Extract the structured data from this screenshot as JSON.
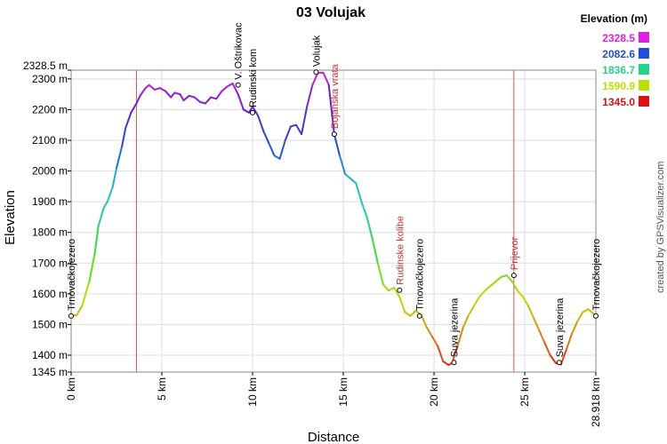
{
  "chart_data": {
    "type": "line",
    "title": "03 Volujak",
    "xlabel": "Distance",
    "ylabel": "Elevation",
    "x_unit": "km",
    "y_unit": "m",
    "xlim": [
      0,
      28.918
    ],
    "ylim": [
      1345,
      2328.5
    ],
    "x_ticks": [
      {
        "value": 0,
        "label": "0 km"
      },
      {
        "value": 5,
        "label": "5 km"
      },
      {
        "value": 10,
        "label": "10 km"
      },
      {
        "value": 15,
        "label": "15 km"
      },
      {
        "value": 20,
        "label": "20 km"
      },
      {
        "value": 25,
        "label": "25 km"
      },
      {
        "value": 28.918,
        "label": "28.918 km"
      }
    ],
    "y_ticks": [
      {
        "value": 1345,
        "label": "1345 m"
      },
      {
        "value": 1400,
        "label": "1400 m"
      },
      {
        "value": 1500,
        "label": "1500 m"
      },
      {
        "value": 1600,
        "label": "1600 m"
      },
      {
        "value": 1700,
        "label": "1700 m"
      },
      {
        "value": 1800,
        "label": "1800 m"
      },
      {
        "value": 1900,
        "label": "1900 m"
      },
      {
        "value": 2000,
        "label": "2000 m"
      },
      {
        "value": 2100,
        "label": "2100 m"
      },
      {
        "value": 2200,
        "label": "2200 m"
      },
      {
        "value": 2300,
        "label": "2300 m"
      },
      {
        "value": 2328.5,
        "label": "2328.5 m"
      }
    ],
    "grid": true,
    "vertical_markers": [
      3.6,
      24.4
    ],
    "series": [
      {
        "x": [
          0,
          0.3,
          0.6,
          1.0,
          1.3,
          1.5,
          1.8,
          2.0,
          2.3,
          2.5,
          2.8,
          3.0,
          3.3,
          3.6,
          3.8,
          4.1,
          4.3,
          4.6,
          4.9,
          5.2,
          5.5,
          5.7,
          6.0,
          6.2,
          6.5,
          6.8,
          7.1,
          7.4,
          7.7,
          8.0,
          8.3,
          8.6,
          8.9,
          9.2,
          9.5,
          9.8,
          10.0,
          10.3,
          10.6,
          10.9,
          11.2,
          11.5,
          11.8,
          12.1,
          12.4,
          12.7,
          13.0,
          13.3,
          13.6,
          13.9,
          14.2,
          14.5,
          14.8,
          15.1,
          15.4,
          15.7,
          16.0,
          16.3,
          16.6,
          16.9,
          17.2,
          17.5,
          17.8,
          18.1,
          18.4,
          18.7,
          19.0,
          19.3,
          19.6,
          19.9,
          20.2,
          20.5,
          20.8,
          21.0,
          21.3,
          21.6,
          21.9,
          22.2,
          22.5,
          22.8,
          23.1,
          23.4,
          23.7,
          24.0,
          24.3,
          24.6,
          24.9,
          25.2,
          25.5,
          25.8,
          26.1,
          26.4,
          26.7,
          27.0,
          27.3,
          27.6,
          27.9,
          28.2,
          28.5,
          28.918
        ],
        "y": [
          1528,
          1530,
          1560,
          1640,
          1730,
          1820,
          1880,
          1900,
          1950,
          2010,
          2080,
          2140,
          2190,
          2220,
          2245,
          2270,
          2280,
          2265,
          2270,
          2260,
          2240,
          2255,
          2250,
          2230,
          2245,
          2240,
          2225,
          2220,
          2240,
          2235,
          2260,
          2275,
          2285,
          2250,
          2200,
          2190,
          2210,
          2180,
          2130,
          2090,
          2050,
          2040,
          2100,
          2145,
          2150,
          2120,
          2210,
          2280,
          2320,
          2320,
          2280,
          2120,
          2050,
          1990,
          1975,
          1960,
          1900,
          1850,
          1780,
          1700,
          1630,
          1610,
          1620,
          1590,
          1540,
          1528,
          1545,
          1530,
          1490,
          1460,
          1430,
          1380,
          1368,
          1375,
          1430,
          1490,
          1530,
          1560,
          1590,
          1610,
          1625,
          1640,
          1655,
          1660,
          1640,
          1610,
          1590,
          1560,
          1520,
          1480,
          1440,
          1400,
          1375,
          1370,
          1420,
          1470,
          1510,
          1540,
          1550,
          1528
        ]
      }
    ],
    "waypoints": [
      {
        "x": 0,
        "y": 1528,
        "label": "Trnovačkojezero",
        "color": "#000000"
      },
      {
        "x": 9.2,
        "y": 2280,
        "label": "V. Oštrikovac",
        "color": "#000000"
      },
      {
        "x": 10.0,
        "y": 2190,
        "label": "Rudinski kom",
        "color": "#000000"
      },
      {
        "x": 13.5,
        "y": 2322,
        "label": "Volujak",
        "color": "#000000"
      },
      {
        "x": 14.5,
        "y": 2120,
        "label": "Bojanska vrata",
        "color": "#cc3333"
      },
      {
        "x": 18.1,
        "y": 1612,
        "label": "Rudinske kolibe",
        "color": "#cc3333"
      },
      {
        "x": 19.2,
        "y": 1528,
        "label": "Trnovačkojezero",
        "color": "#000000"
      },
      {
        "x": 21.1,
        "y": 1376,
        "label": "Suva jezerina",
        "color": "#000000"
      },
      {
        "x": 24.4,
        "y": 1660,
        "label": "Prijevor",
        "color": "#cc3333"
      },
      {
        "x": 26.9,
        "y": 1376,
        "label": "Suva jezerina",
        "color": "#000000"
      },
      {
        "x": 28.918,
        "y": 1528,
        "label": "Trnovačkojezero",
        "color": "#000000"
      }
    ],
    "legend": {
      "title": "Elevation (m)",
      "placement": "top-right",
      "entries": [
        {
          "label": "2328.5",
          "color": "#e020e0"
        },
        {
          "label": "2082.6",
          "color": "#1f4fd8"
        },
        {
          "label": "1836.7",
          "color": "#22d488"
        },
        {
          "label": "1590.9",
          "color": "#b8e000"
        },
        {
          "label": "1345.0",
          "color": "#dd1111"
        }
      ]
    },
    "color_scale": {
      "stops": [
        {
          "value": 1345,
          "color": "#dd1111"
        },
        {
          "value": 1468,
          "color": "#e08a10"
        },
        {
          "value": 1590.9,
          "color": "#b8e000"
        },
        {
          "value": 1714,
          "color": "#44e020"
        },
        {
          "value": 1836.7,
          "color": "#22d488"
        },
        {
          "value": 1960,
          "color": "#22b8e0"
        },
        {
          "value": 2082.6,
          "color": "#1f4fd8"
        },
        {
          "value": 2205,
          "color": "#6a20d0"
        },
        {
          "value": 2328.5,
          "color": "#e020e0"
        }
      ]
    }
  },
  "credit": "created by GPSVisualizer.com"
}
